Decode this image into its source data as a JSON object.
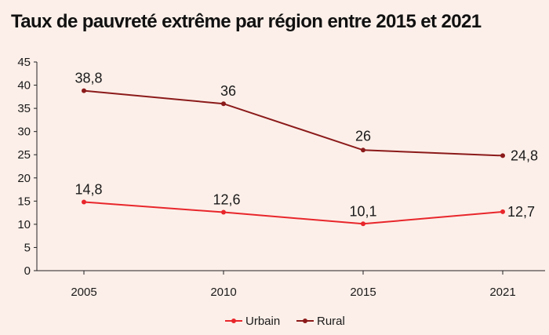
{
  "chart_data": {
    "type": "line",
    "title": "Taux de pauvreté extrême par région entre 2015 et 2021",
    "categories": [
      "2005",
      "2010",
      "2015",
      "2021"
    ],
    "ylim": [
      0,
      45
    ],
    "yticks": [
      0,
      5,
      10,
      15,
      20,
      25,
      30,
      35,
      40,
      45
    ],
    "grid": false,
    "legend_position": "bottom",
    "series": [
      {
        "name": "Urbain",
        "values": [
          14.8,
          12.6,
          10.1,
          12.7
        ],
        "labels": [
          "14,8",
          "12,6",
          "10,1",
          "12,7"
        ],
        "color": "#e8262b"
      },
      {
        "name": "Rural",
        "values": [
          38.8,
          36,
          26,
          24.8
        ],
        "labels": [
          "38,8",
          "36",
          "26",
          "24,8"
        ],
        "color": "#8b1a1a"
      }
    ]
  }
}
